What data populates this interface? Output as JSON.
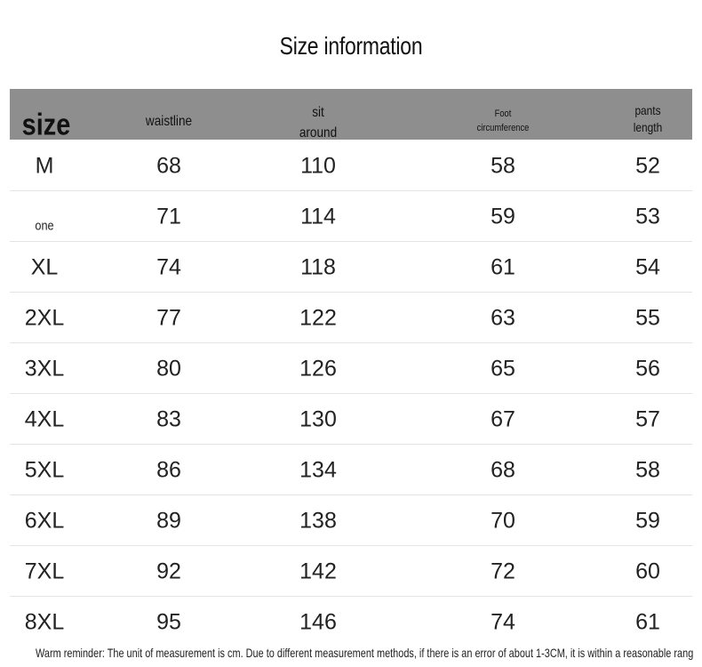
{
  "header": {
    "title": "Size information"
  },
  "table": {
    "columns": [
      "size",
      "waistline",
      "sit\naround",
      "Foot\ncircumference",
      "pants\nlength"
    ],
    "rows": [
      [
        "M",
        "68",
        "110",
        "58",
        "52"
      ],
      [
        "one",
        "71",
        "114",
        "59",
        "53"
      ],
      [
        "XL",
        "74",
        "118",
        "61",
        "54"
      ],
      [
        "2XL",
        "77",
        "122",
        "63",
        "55"
      ],
      [
        "3XL",
        "80",
        "126",
        "65",
        "56"
      ],
      [
        "4XL",
        "83",
        "130",
        "67",
        "57"
      ],
      [
        "5XL",
        "86",
        "134",
        "68",
        "58"
      ],
      [
        "6XL",
        "89",
        "138",
        "70",
        "59"
      ],
      [
        "7XL",
        "92",
        "142",
        "72",
        "60"
      ],
      [
        "8XL",
        "95",
        "146",
        "74",
        "61"
      ]
    ]
  },
  "footnote": "Warm reminder: The unit of measurement is cm. Due to different measurement methods, if there is an error of about 1-3CM, it is within a reasonable rang"
}
